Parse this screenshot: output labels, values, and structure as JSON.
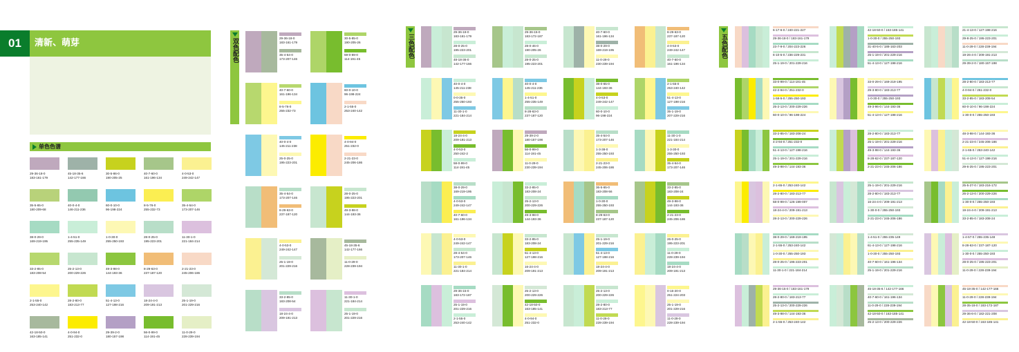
{
  "header": {
    "number": "01",
    "title": "清新、萌芽"
  },
  "single": {
    "title": "单色色谱"
  },
  "double": {
    "tab": "双色配色"
  },
  "triple": {
    "tab": "三色配色"
  },
  "five": {
    "tab": "五色配色"
  },
  "colors": {
    "C1": "#bfa9bd",
    "C2": "#9eb2a8",
    "C3": "#c7d21e",
    "C4": "#a6c68a",
    "C5": "#fbf191",
    "C6": "#b8d27a",
    "C7": "#93c9b0",
    "C8": "#6dc4e0",
    "C9": "#fbee52",
    "C10": "#aed568",
    "C11": "#a6dbc3",
    "C12": "#c9eed8",
    "C13": "#fdf8b4",
    "C14": "#b8dec8",
    "C15": "#dcc0de",
    "C16": "#b7d86e",
    "C17": "#c7e6cf",
    "C18": "#8cc63f",
    "C19": "#f1bd77",
    "C20": "#f8d9c6",
    "C21": "#fdf68e",
    "C22": "#c1da52",
    "C23": "#7ec9e4",
    "C24": "#d9c6e0",
    "C25": "#d4e8d6",
    "C26": "#a7b99d",
    "C27": "#fcec00",
    "C28": "#b4a0c5",
    "C29": "#78bd2e",
    "C30": "#e5efc6"
  },
  "single_labels": [
    [
      "29-36-18-0",
      "183-161-179"
    ],
    [
      "45-18-35-6",
      "142-177-166"
    ],
    [
      "30-5-86-0",
      "190-205-25"
    ],
    [
      "40-7-60-0",
      "161-196-134"
    ],
    [
      "4-0-53-0",
      "249-242-147"
    ],
    [
      "35-5-65-0",
      "180-209-68"
    ],
    [
      "40-0-4-0",
      "146-211-236"
    ],
    [
      "60-0-10-0",
      "96-198-224"
    ],
    [
      "8-5-76-0",
      "255-232-73"
    ],
    [
      "35-4-54-0",
      "173-207-146"
    ],
    [
      "38-0-29-0",
      "169-219-195"
    ],
    [
      "1-4-51-0",
      "255-235-149"
    ],
    [
      "1-0-30-0",
      "255-250-193"
    ],
    [
      "28-0-25-0",
      "195-223-201"
    ],
    [
      "11-30-1-0",
      "221-184-214"
    ],
    [
      "33-2-85-0",
      "183-208-54"
    ],
    [
      "25-2-13-0",
      "200-229-226"
    ],
    [
      "49-3-98-0",
      "144-193-36"
    ],
    [
      "8-29-63-0",
      "237-187-120"
    ],
    [
      "2-21-23-0",
      "245-206-186"
    ],
    [
      "2-1-55-0",
      "253-240-142"
    ],
    [
      "28-2-80-0",
      "183-213-77"
    ],
    [
      "51-4-13-0",
      "127-198-216"
    ],
    [
      "18-24-4-0",
      "209-191-213"
    ],
    [
      "25-1-19-0",
      "201-229-216"
    ],
    [
      "42-18-50-0",
      "163-185-141"
    ],
    [
      "4-0-94-0",
      "251-232-0"
    ],
    [
      "29-39-2-0",
      "180-157-198"
    ],
    [
      "56-0-99-0",
      "114-191-45"
    ],
    [
      "11-0-29-0",
      "228-239-194"
    ]
  ],
  "double_pairs": [
    {
      "a": "C1",
      "b": "C26",
      "l": [
        "29-36-18-0",
        "183-161-179",
        "35-4-54-0",
        "173-207-146"
      ]
    },
    {
      "a": "C10",
      "b": "C29",
      "l": [
        "30-5-85-0",
        "190-205-26",
        "59-0-89-0",
        "114-191-45"
      ]
    },
    {
      "a": "C16",
      "b": "C21",
      "l": [
        "40-7-60-0",
        "161-196-134",
        "8-5-76-0",
        "255-232-73"
      ]
    },
    {
      "a": "C8",
      "b": "C20",
      "l": [
        "60-0-10-0",
        "96-198-224",
        "2-1-55-0",
        "253-240-142"
      ]
    },
    {
      "a": "C23",
      "b": "C13",
      "l": [
        "40-0-4-0",
        "145-211-238",
        "25-0-25-0",
        "195-223-201"
      ]
    },
    {
      "a": "C27",
      "b": "C20",
      "l": [
        "4-0-94-0",
        "251-232-0",
        "2-21-23-0",
        "245-206-186"
      ]
    },
    {
      "a": "C14",
      "b": "C19",
      "l": [
        "35-4-54-0",
        "173-207-146",
        "8-29-63-0",
        "237-187-120"
      ]
    },
    {
      "a": "C17",
      "b": "C3",
      "l": [
        "28-0-25-0",
        "195-223-201",
        "49-3-98-0",
        "144-193-36"
      ]
    },
    {
      "a": "C5",
      "b": "C25",
      "l": [
        "4-0-53-0",
        "249-242-147",
        "25-1-19-0",
        "201-229-216"
      ]
    },
    {
      "a": "C26",
      "b": "C30",
      "l": [
        "45-18-35-6",
        "142-177-166",
        "11-0-29-0",
        "228-239-194"
      ]
    },
    {
      "a": "C14",
      "b": "C24",
      "l": [
        "33-2-85-0",
        "183-208-54",
        "18-24-4-0",
        "209-191-213"
      ]
    },
    {
      "a": "C15",
      "b": "C17",
      "l": [
        "11-30-1-0",
        "221-184-214",
        "25-1-19-0",
        "201-229-216"
      ]
    }
  ],
  "triple_rows": [
    [
      [
        "C1",
        "C12",
        "C17"
      ],
      [
        "29-36-18-0",
        "183-161-179",
        "28-0-25-0",
        "195-223-201",
        "48-18-36-0",
        "142-177-166"
      ]
    ],
    [
      [
        "C4",
        "C12",
        "C17"
      ],
      [
        "29-36-15-0",
        "183-172-187",
        "28-0-46-0",
        "190-205-26",
        "28-0-25-0",
        "195-223-201"
      ]
    ],
    [
      [
        "C17",
        "C2",
        "C13"
      ],
      [
        "40-7-60-0",
        "161-196-134",
        "38-0-29-0",
        "169-219-195",
        "11-0-29-0",
        "230-239-194"
      ]
    ],
    [
      [
        "C19",
        "C5",
        "C17"
      ],
      [
        "8-29-63-0",
        "237-187-120",
        "4-0-53-0",
        "249-242-147",
        "40-7-60-0",
        "161-196-134"
      ]
    ],
    [
      [
        "C12",
        "C13",
        "C23"
      ],
      [
        "40-0-4-0",
        "145-211-238",
        "0-0-35-0",
        "255-250-193",
        "11-30-1-0",
        "221-184-214"
      ]
    ],
    [
      [
        "C23",
        "C21",
        "C14"
      ],
      [
        "40-0-4-0",
        "145-211-236",
        "1-4-51-0",
        "255-235-149",
        "8-28-63-0",
        "237-187-120"
      ]
    ],
    [
      [
        "C29",
        "C3",
        "C12"
      ],
      [
        "38-0-65-0",
        "144-193-36",
        "4-0-53-0",
        "249-242-147",
        "60-0-10-0",
        "96-198-224"
      ]
    ],
    [
      [
        "C10",
        "C21",
        "C23"
      ],
      [
        "2-1-55-0",
        "253-240-142",
        "51-4-13-0",
        "127-198-216",
        "35-1-19-0",
        "207-229-216"
      ]
    ],
    [
      [
        "C3",
        "C29",
        "C12"
      ],
      [
        "18-24-4-0",
        "209-191-213",
        "4-0-53-0",
        "250-242-2",
        "58-0-99-0",
        "114-191-45"
      ]
    ],
    [
      [
        "C1",
        "C29",
        "C13"
      ],
      [
        "29-39-2-0",
        "180-157-198",
        "56-0-99-0",
        "114-191-45",
        "11-0-29-0",
        "230-239-194"
      ]
    ],
    [
      [
        "C14",
        "C13",
        "C5"
      ],
      [
        "35-4-54-0",
        "173-207-146",
        "1-3-38-0",
        "255-250-193",
        "2-21-23-0",
        "245-206-186"
      ]
    ],
    [
      [
        "C11",
        "C13",
        "C3"
      ],
      [
        "11-30-1-0",
        "221-184-214",
        "1-3-30-0",
        "255-250-193",
        "35-4-54-0",
        "173-207-146"
      ]
    ],
    [
      [
        "C14",
        "C11",
        "C9"
      ],
      [
        "38-0-29-0",
        "169-219-195",
        "4-0-53-0",
        "249-242-147",
        "40-7-60-0",
        "161-196-134"
      ]
    ],
    [
      [
        "C12",
        "C17",
        "C29"
      ],
      [
        "33-2-85-0",
        "183-208-24",
        "25-2-13-0",
        "200-229-226",
        "49-3-98-0",
        "144-193-36"
      ]
    ],
    [
      [
        "C19",
        "C11",
        "C4"
      ],
      [
        "36-5-65-0",
        "183-208-56",
        "1-0-30-0",
        "255-250-193",
        "8-29-63-0",
        "237-187-120"
      ]
    ],
    [
      [
        "C4",
        "C3",
        "C29"
      ],
      [
        "33-2-85-0",
        "183-208-24",
        "49-3-98-0",
        "144-193-36",
        "2-21-23-0",
        "245-206-186"
      ]
    ],
    [
      [
        "C13",
        "C17",
        "C5"
      ],
      [
        "4-0-53-0",
        "249-242-147",
        "28-4-54-0",
        "173-207-146",
        "11-30-1-0",
        "221-184-214"
      ]
    ],
    [
      [
        "C17",
        "C3",
        "C13"
      ],
      [
        "33-2-85-0",
        "183-208-24",
        "51-4-13-0",
        "127-198-216",
        "16-24-4-0",
        "209-191-213"
      ]
    ],
    [
      [
        "C17",
        "C23",
        "C5"
      ],
      [
        "25-1-19-0",
        "201-229-216",
        "51-4-13-0",
        "127-198-216",
        "18-24-4-0",
        "209-191-213"
      ]
    ],
    [
      [
        "C5",
        "C12",
        "C11"
      ],
      [
        "26-0-25-0",
        "195-223-201",
        "11-0-29-0",
        "228-239-194",
        "18-24-4-0",
        "209-191-213"
      ]
    ],
    [
      [
        "C11",
        "C15",
        "C12"
      ],
      [
        "29-36-15-0",
        "183-172-187",
        "25-1-19-0",
        "201-229-216",
        "2-1-55-0",
        "253-240-142"
      ]
    ],
    [
      [
        "C25",
        "C29",
        "C13"
      ],
      [
        "25-2-13-0",
        "200-229-226",
        "42-18-50-0",
        "163-185-141",
        "4-0-94-0",
        "251-232-0"
      ]
    ],
    [
      [
        "C17",
        "C12",
        "C22"
      ],
      [
        "25-2-13-0",
        "200-229-226",
        "28-2-80-0",
        "183-213-77",
        "11-0-29-0",
        "228-239-194"
      ]
    ],
    [
      [
        "C21",
        "C13",
        "C24"
      ],
      [
        "0-16-20-0",
        "251-224-203",
        "25-1-19-0",
        "201-229-216",
        "11-0-29-0",
        "228-239-194"
      ]
    ]
  ],
  "five_rows": [
    [
      [
        "C20",
        "C15",
        "C11",
        "C17",
        "C12"
      ],
      [
        "6-17-6-0",
        "240-221-227",
        "29-36-18-0",
        "183-161-179",
        "23-7-9-0",
        "204-223-226",
        "6-10-5-0",
        "236-229-231",
        "25-1-19-0",
        "201-229-216"
      ]
    ],
    [
      [
        "C12",
        "C22",
        "C2",
        "C28",
        "C11"
      ],
      [
        "42-18-50-0",
        "163-185-141",
        "1-0-30-0",
        "255-250-193",
        "31-40-5-0",
        "188-163-203",
        "25-1-19-0",
        "201-229-216",
        "51-4-13-0",
        "127-198-216"
      ]
    ],
    [
      [
        "C17",
        "C12",
        "C20",
        "C25",
        "C14"
      ],
      [
        "21-4-13-0",
        "127-198-216",
        "29-8-25-0",
        "195-223-201",
        "11-0-29-0",
        "228-239-194",
        "19-26-4-0",
        "209-191-213",
        "29-39-2-0",
        "180-157-198"
      ]
    ],
    [
      [
        "C29",
        "C10",
        "C27",
        "C11",
        "C13"
      ],
      [
        "33-0-99-0",
        "114-191-45",
        "42-2-94-0",
        "251-232-0",
        "1-58-5-0",
        "255-250-193",
        "25-2-13-0",
        "200-229-226",
        "60-0-10-0",
        "96-198-224"
      ]
    ],
    [
      [
        "C13",
        "C24",
        "C28",
        "C29",
        "C21"
      ],
      [
        "33-0-29-0",
        "169-219-195",
        "29-3-80-0",
        "183-213-77",
        "1-0-30-0",
        "255-250-193",
        "49-3-96-0",
        "144-193-36",
        "51-4-13-0",
        "127-198-216"
      ]
    ],
    [
      [
        "C8",
        "C17",
        "C22",
        "C12",
        "C21"
      ],
      [
        "28-2-80-0",
        "183-213-77",
        "4-0-94-0",
        "251-232-0",
        "33-2-85-0",
        "183-208-54",
        "60-0-10-0",
        "96-198-224",
        "1-30-0-0",
        "255-250-193"
      ]
    ],
    [
      [
        "C3",
        "C29",
        "C11",
        "C12",
        "C18"
      ],
      [
        "33-2-85-0",
        "183-208-24",
        "4-2-94-0",
        "251-232-0",
        "51-4-13-0",
        "127-198-216",
        "25-1-19-0",
        "201-229-216",
        "49-3-98-0",
        "144-193-36"
      ]
    ],
    [
      [
        "C12",
        "C22",
        "C28",
        "C15",
        "C29"
      ],
      [
        "28-2-80-0",
        "183-213-77",
        "25-1-19-0",
        "201-229-216",
        "49-3-98-0",
        "144-193-36",
        "8-28-62-0",
        "237-187-120",
        "2-21-23-0",
        "245-206-186"
      ]
    ],
    [
      [
        "C13",
        "C15",
        "C5",
        "C12",
        "C25"
      ],
      [
        "48-3-98-0",
        "144-193-36",
        "2-21-23-0",
        "245-206-186",
        "2-1-65-0",
        "253-240-142",
        "51-4-13-0",
        "127-198-216",
        "29-6-25-0",
        "195-223-201"
      ]
    ],
    [
      [
        "C21",
        "C27",
        "C24",
        "C15",
        "C13"
      ],
      [
        "2-1-65-0",
        "253-240-142",
        "28-2-80-0",
        "183-213-77",
        "58-0-99-0",
        "126-199-007",
        "18-24-4-0",
        "209-191-213",
        "28-2-13-0",
        "200-229-226"
      ]
    ],
    [
      [
        "C17",
        "C24",
        "C12",
        "C25",
        "C11"
      ],
      [
        "25-1-19-0",
        "201-229-216",
        "28-2-80-0",
        "183-213-77",
        "16-24-4-0",
        "209-191-213",
        "1-30-0-0",
        "255-250-193",
        "2-21-23-0",
        "245-206-186"
      ]
    ],
    [
      [
        "C4",
        "C29",
        "C11",
        "C5",
        "C12"
      ],
      [
        "25-5-27-0",
        "183-216-172",
        "26-2-13-0",
        "200-229-226",
        "1-30-0-0",
        "255-250-193",
        "19-24-4-0",
        "209-191-213",
        "33-2-85-0",
        "183-208-24"
      ]
    ],
    [
      [
        "C11",
        "C14",
        "C13",
        "C5",
        "C12"
      ],
      [
        "38-0-29-0",
        "169-219-195",
        "2-1-55-0",
        "253-240-142",
        "1-0-30-0",
        "255-250-193",
        "28-0-25-0",
        "195-223-201",
        "11-30-1-0",
        "221-184-214"
      ]
    ],
    [
      [
        "C25",
        "C12",
        "C5",
        "C13",
        "C14"
      ],
      [
        "1-4-51-0",
        "255-235-149",
        "61-4-13-0",
        "127-198-216",
        "1-0-30-0",
        "255-250-193",
        "40-7-60-0",
        "161-196-134",
        "25-1-19-0",
        "201-229-216"
      ]
    ],
    [
      [
        "C24",
        "C13",
        "C12",
        "C15",
        "C30"
      ],
      [
        "1-4-57-0",
        "255-235-148",
        "8-28-63-0",
        "237-187-120",
        "1-30-0-0",
        "255-250-193",
        "28-0-25-0",
        "195-223-201",
        "11-0-29-0",
        "228-239-194"
      ]
    ],
    [
      [
        "C15",
        "C12",
        "C2",
        "C22",
        "C5"
      ],
      [
        "29-36-15-0",
        "183-161-179",
        "28-2-80-0",
        "183-213-77",
        "25-2-13-0",
        "200-229-226",
        "49-3-98-0",
        "144-193-36",
        "2-1-55-0",
        "253-240-142"
      ]
    ],
    [
      [
        "C12",
        "C25",
        "C14",
        "C18",
        "C26"
      ],
      [
        "45-18-35-6",
        "142-177-166",
        "40-7-60-0",
        "161-196-134",
        "11-0-29-0",
        "228-239-194",
        "42-18-50-0",
        "163-185-141",
        "25-2-13-0",
        "200-229-226"
      ]
    ],
    [
      [
        "C20",
        "C13",
        "C18",
        "C24",
        "C5"
      ],
      [
        "45-18-35-0",
        "142-177-166",
        "11-0-29-0",
        "228-239-194",
        "28-35-18-0",
        "183-172-187",
        "29-36-6-0",
        "182-221-208",
        "42-18-50-0",
        "163-185-141"
      ]
    ]
  ]
}
